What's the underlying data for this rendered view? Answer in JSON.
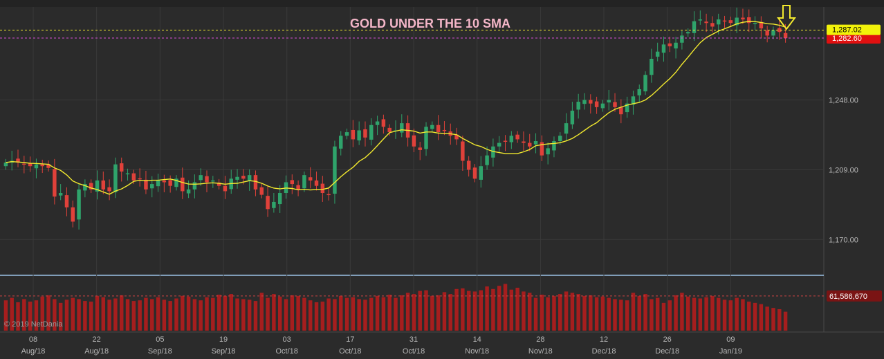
{
  "title": "GOLD UNDER THE 10 SMA",
  "copyright": "© 2019 NetDania",
  "colors": {
    "background": "#2b2b2b",
    "up_candle": "#2fa36b",
    "down_candle": "#e0413a",
    "sma_line": "#f2e92e",
    "volume": "#a61e1e",
    "price_line": "#f2e92e",
    "dashed_level": "#d94fd9"
  },
  "icons": {
    "arrow": "down-arrow-icon"
  },
  "chart_data": [
    {
      "type": "candlestick",
      "title": "GOLD UNDER THE 10 SMA",
      "ylim": [
        1150,
        1300
      ],
      "y_ticks": [
        {
          "value": 1170,
          "label": "1,170.00"
        },
        {
          "value": 1209,
          "label": "1,209.00"
        },
        {
          "value": 1248,
          "label": "1,248.00"
        }
      ],
      "x_ticks": [
        {
          "day": "08",
          "month": "Aug/18"
        },
        {
          "day": "22",
          "month": "Aug/18"
        },
        {
          "day": "05",
          "month": "Sep/18"
        },
        {
          "day": "19",
          "month": "Sep/18"
        },
        {
          "day": "03",
          "month": "Oct/18"
        },
        {
          "day": "17",
          "month": "Oct/18"
        },
        {
          "day": "31",
          "month": "Oct/18"
        },
        {
          "day": "14",
          "month": "Nov/18"
        },
        {
          "day": "28",
          "month": "Nov/18"
        },
        {
          "day": "12",
          "month": "Dec/18"
        },
        {
          "day": "26",
          "month": "Dec/18"
        },
        {
          "day": "09",
          "month": "Jan/19"
        }
      ],
      "price_label": {
        "value": 1287.02,
        "label": "1,287.02"
      },
      "close_label": {
        "value": 1282.6,
        "label": "1,282.60"
      },
      "sma_period": 10,
      "closes": [
        1213,
        1214,
        1213,
        1212,
        1211,
        1212,
        1211,
        1210,
        1194,
        1196,
        1188,
        1180,
        1198,
        1201,
        1198,
        1203,
        1198,
        1197,
        1212,
        1208,
        1207,
        1203,
        1204,
        1198,
        1201,
        1203,
        1202,
        1200,
        1204,
        1197,
        1198,
        1202,
        1206,
        1202,
        1203,
        1200,
        1197,
        1204,
        1205,
        1204,
        1206,
        1198,
        1195,
        1187,
        1191,
        1196,
        1202,
        1201,
        1198,
        1206,
        1203,
        1200,
        1196,
        1195,
        1222,
        1228,
        1230,
        1226,
        1231,
        1227,
        1234,
        1236,
        1233,
        1230,
        1231,
        1235,
        1227,
        1222,
        1220,
        1233,
        1234,
        1230,
        1231,
        1228,
        1226,
        1214,
        1209,
        1204,
        1211,
        1217,
        1222,
        1224,
        1225,
        1228,
        1226,
        1224,
        1222,
        1225,
        1217,
        1221,
        1225,
        1228,
        1235,
        1242,
        1247,
        1248,
        1246,
        1244,
        1246,
        1248,
        1244,
        1240,
        1246,
        1250,
        1254,
        1262,
        1271,
        1275,
        1279,
        1278,
        1280,
        1284,
        1286,
        1292,
        1293,
        1291,
        1289,
        1293,
        1292,
        1291,
        1294,
        1293,
        1291,
        1291,
        1288,
        1284,
        1287,
        1286,
        1282.6
      ]
    },
    {
      "type": "bar",
      "title": "",
      "last_value": 61586670,
      "last_label": "61,586,670",
      "values": [
        48,
        52,
        45,
        50,
        46,
        48,
        54,
        56,
        50,
        44,
        49,
        52,
        50,
        47,
        46,
        55,
        53,
        49,
        51,
        56,
        50,
        47,
        48,
        52,
        50,
        53,
        49,
        47,
        51,
        55,
        54,
        50,
        48,
        53,
        52,
        57,
        55,
        58,
        51,
        50,
        49,
        47,
        60,
        52,
        58,
        54,
        50,
        56,
        55,
        52,
        48,
        45,
        46,
        51,
        50,
        55,
        52,
        53,
        50,
        49,
        52,
        55,
        53,
        57,
        52,
        56,
        60,
        58,
        63,
        64,
        55,
        56,
        61,
        58,
        66,
        67,
        63,
        62,
        64,
        70,
        66,
        71,
        74,
        65,
        68,
        62,
        60,
        52,
        57,
        53,
        55,
        58,
        62,
        60,
        58,
        55,
        56,
        53,
        54,
        52,
        50,
        49,
        48,
        60,
        55,
        58,
        50,
        52,
        44,
        48,
        56,
        60,
        54,
        52,
        51,
        53,
        55,
        52,
        49,
        48,
        52,
        50,
        46,
        44,
        42,
        38,
        36,
        34,
        30
      ]
    }
  ]
}
